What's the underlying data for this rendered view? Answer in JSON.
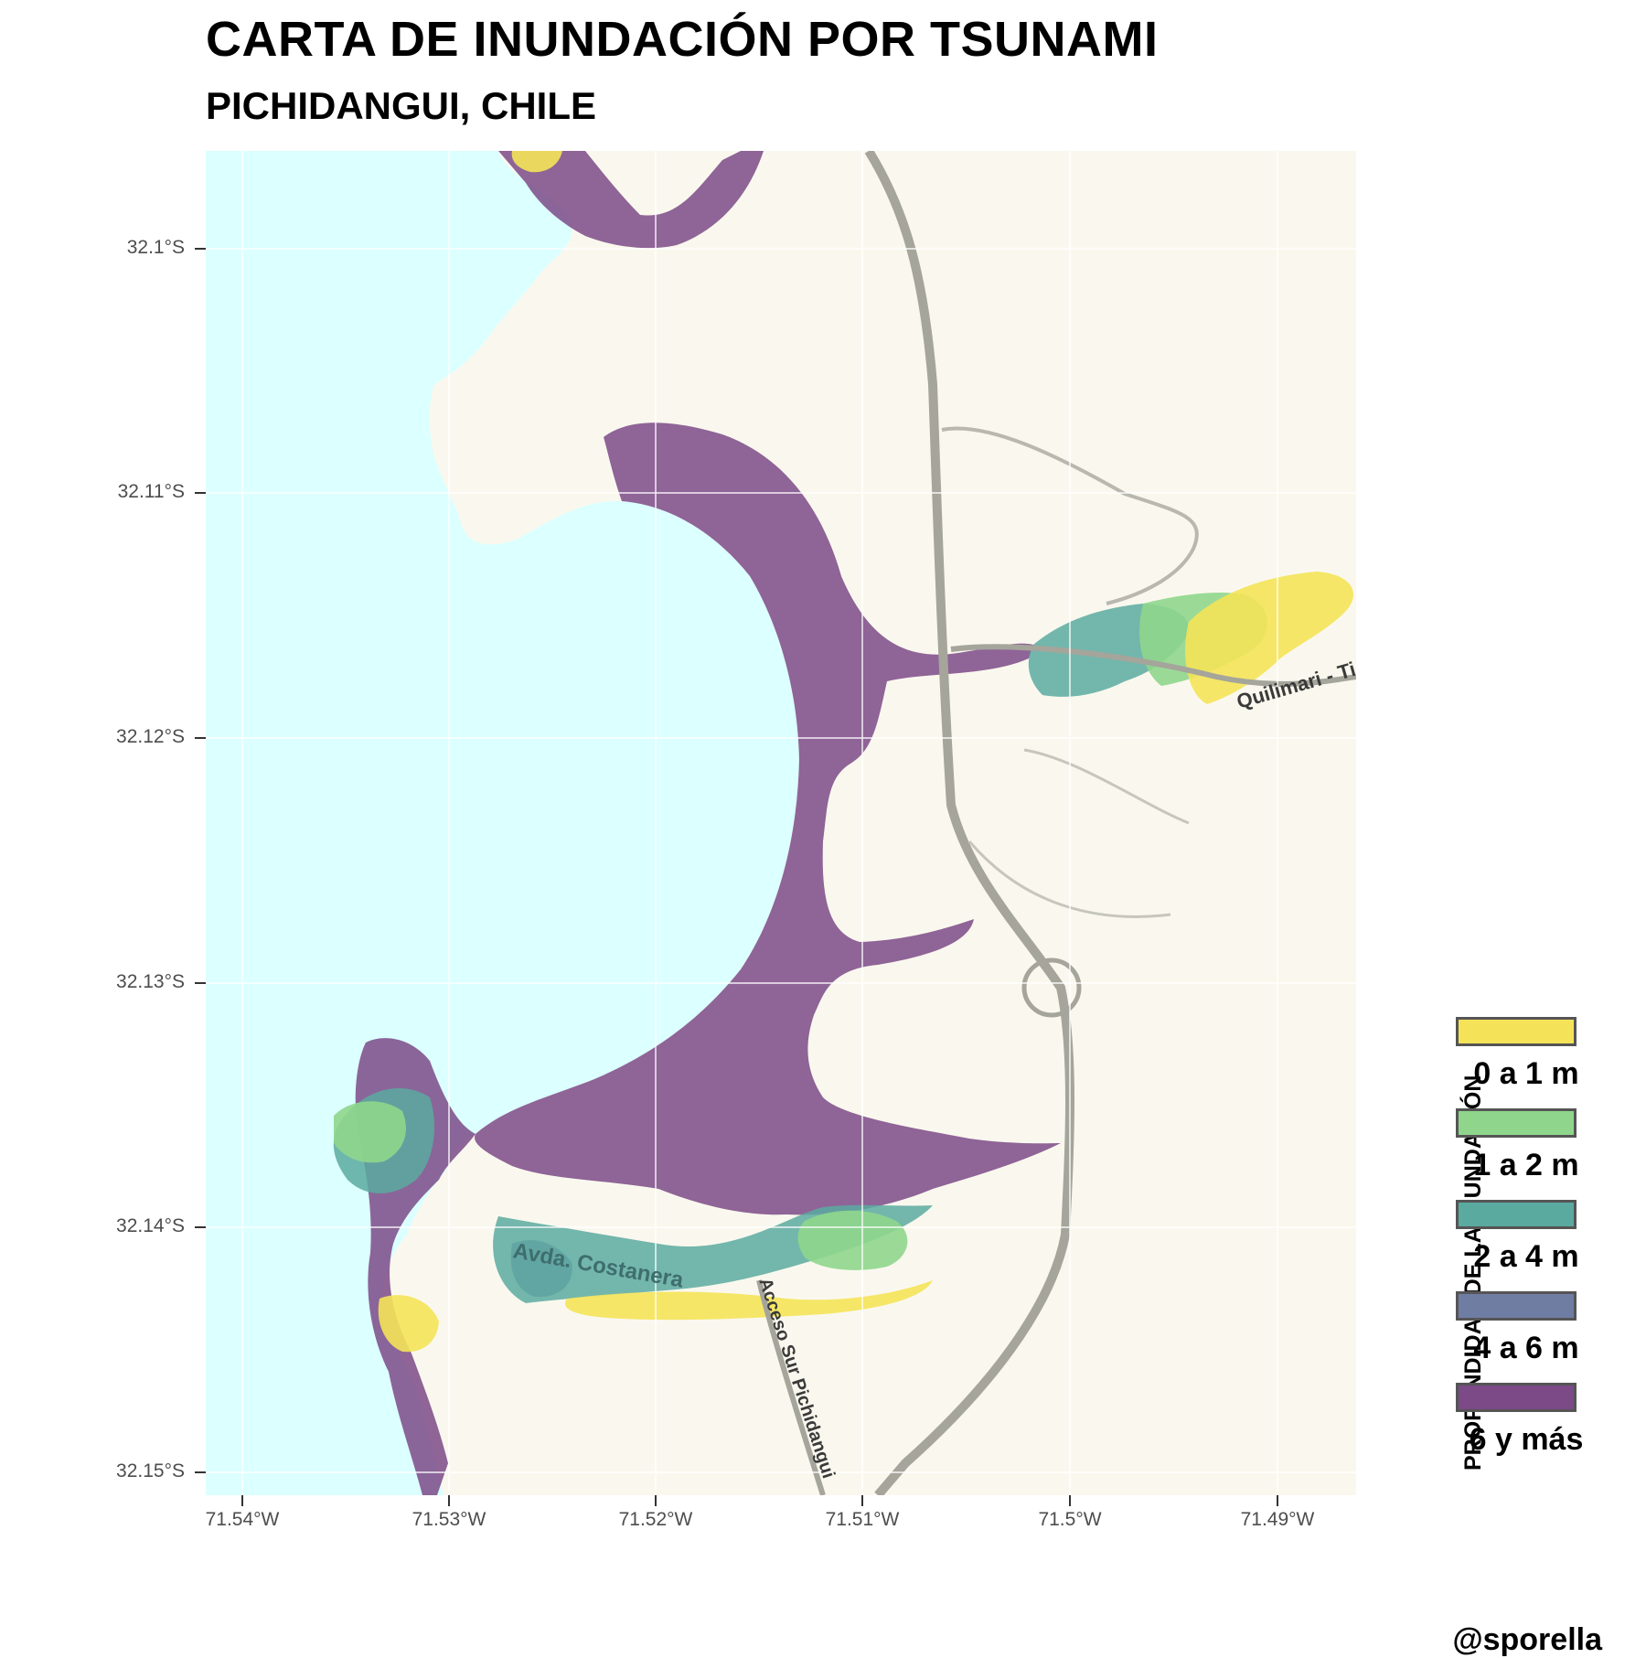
{
  "title": "CARTA DE INUNDACIÓN POR TSUNAMI",
  "subtitle": "PICHIDANGUI, CHILE",
  "axes": {
    "y_ticks": [
      "32.1°S",
      "32.11°S",
      "32.12°S",
      "32.13°S",
      "32.14°S",
      "32.15°S"
    ],
    "x_ticks": [
      "71.54°W",
      "71.53°W",
      "71.52°W",
      "71.51°W",
      "71.5°W",
      "71.49°W"
    ]
  },
  "map_labels": {
    "road_east": "Quilimari - Ti",
    "avenue": "Avda. Costanera",
    "access": "Acceso Sur Pichidangui"
  },
  "legend": {
    "title": "PROFUNDIDAD DE LA INUNDACIÓN",
    "items": [
      {
        "label": "0 a 1 m",
        "color": "#f4e358"
      },
      {
        "label": "1 a 2 m",
        "color": "#8fd68c"
      },
      {
        "label": "2 a 4 m",
        "color": "#5aaaa0"
      },
      {
        "label": "4 a 6 m",
        "color": "#6f7da3"
      },
      {
        "label": "6 y más",
        "color": "#7b4a87"
      }
    ]
  },
  "colors": {
    "sea": "#dcffff",
    "land": "#faf8ee",
    "road": "#a5a59b",
    "grid": "#ffffff"
  },
  "credit": "@sporella"
}
